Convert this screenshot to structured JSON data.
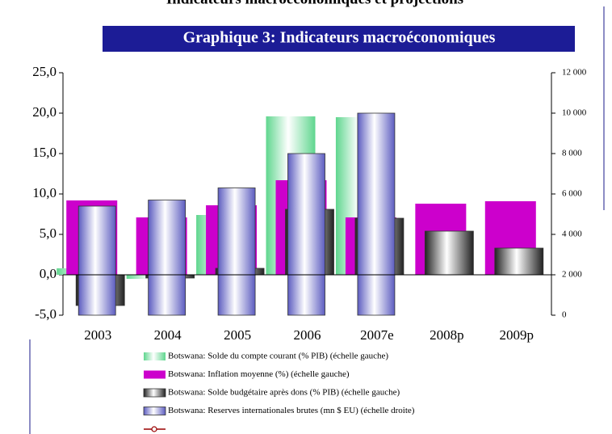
{
  "chart_data": {
    "type": "bar",
    "page_title": "Indicateurs macroéconomiques et projections",
    "title": "Graphique 3: Indicateurs macroéconomiques",
    "categories": [
      "2003",
      "2004",
      "2005",
      "2006",
      "2007e",
      "2008p",
      "2009p"
    ],
    "series": [
      {
        "name": "Botswana: Solde du compte courant (% PIB) (échelle gauche)",
        "color": "#5fd68e",
        "values": [
          0.8,
          -0.5,
          7.4,
          19.6,
          19.5,
          null,
          null
        ]
      },
      {
        "name": "Botswana: Inflation moyenne (%) (échelle gauche)",
        "color": "#cc00cc",
        "values": [
          9.2,
          7.1,
          8.6,
          11.7,
          7.1,
          8.8,
          9.1
        ]
      },
      {
        "name": "Botswana: Solde budgétaire après dons (% PIB) (échelle gauche)",
        "color": "#9a9a9a",
        "values": [
          -3.8,
          -0.4,
          0.8,
          8.1,
          7.0,
          5.4,
          3.3
        ]
      },
      {
        "name": "Botswana: Reserves internationales brutes (mn $ EU) (échelle droite)",
        "color": "#5c5cc0",
        "axis": "y2",
        "values": [
          5400,
          5700,
          6300,
          8000,
          10000,
          null,
          null
        ]
      }
    ],
    "ylim": [
      -5,
      25
    ],
    "yticks": [
      {
        "value": -5,
        "label": "-5,0"
      },
      {
        "value": 0,
        "label": "0,0"
      },
      {
        "value": 5,
        "label": "5,0"
      },
      {
        "value": 10,
        "label": "10,0"
      },
      {
        "value": 15,
        "label": "15,0"
      },
      {
        "value": 20,
        "label": "20,0"
      },
      {
        "value": 25,
        "label": "25,0"
      }
    ],
    "y2lim": [
      0,
      12000
    ],
    "y2ticks": [
      0,
      {
        "value": 2000,
        "label": "2 000"
      },
      {
        "value": 4000,
        "label": "4 000"
      },
      {
        "value": 6000,
        "label": "6 000"
      },
      {
        "value": 8000,
        "label": "8 000"
      },
      {
        "value": 10000,
        "label": "10 000"
      },
      {
        "value": 12000,
        "label": "12 000"
      }
    ],
    "legend": "bottom"
  }
}
